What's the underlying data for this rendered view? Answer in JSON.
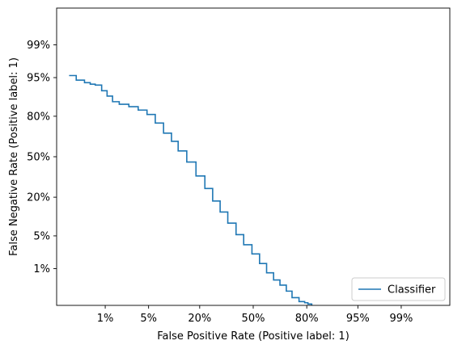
{
  "chart_data": {
    "type": "line",
    "subtype": "DET curve",
    "scale": "normal-deviate (probit)",
    "xlabel": "False Positive Rate (Positive label: 1)",
    "ylabel": "False Negative Rate (Positive label: 1)",
    "xticks": [
      {
        "value": 0.01,
        "label": "1%"
      },
      {
        "value": 0.05,
        "label": "5%"
      },
      {
        "value": 0.2,
        "label": "20%"
      },
      {
        "value": 0.5,
        "label": "50%"
      },
      {
        "value": 0.8,
        "label": "80%"
      },
      {
        "value": 0.95,
        "label": "95%"
      },
      {
        "value": 0.99,
        "label": "99%"
      }
    ],
    "yticks": [
      {
        "value": 0.01,
        "label": "1%"
      },
      {
        "value": 0.05,
        "label": "5%"
      },
      {
        "value": 0.2,
        "label": "20%"
      },
      {
        "value": 0.5,
        "label": "50%"
      },
      {
        "value": 0.8,
        "label": "80%"
      },
      {
        "value": 0.95,
        "label": "95%"
      },
      {
        "value": 0.99,
        "label": "99%"
      }
    ],
    "xlim": [
      0.001,
      0.999
    ],
    "ylim": [
      0.001,
      0.999
    ],
    "grid": false,
    "legend_position": "lower right",
    "series": [
      {
        "name": "Classifier",
        "color": "#1f77b4",
        "x": [
          0.0019,
          0.0027,
          0.004,
          0.0052,
          0.0065,
          0.0086,
          0.0108,
          0.0135,
          0.0176,
          0.0253,
          0.0353,
          0.0475,
          0.0618,
          0.0793,
          0.0994,
          0.119,
          0.1481,
          0.1841,
          0.2236,
          0.2619,
          0.3015,
          0.3446,
          0.3936,
          0.4404,
          0.492,
          0.5397,
          0.5832,
          0.6255,
          0.6628,
          0.6985,
          0.7291,
          0.7642,
          0.7907,
          0.8051,
          0.8212,
          0.8389,
          0.8508,
          0.8508
        ],
        "y": [
          0.9543,
          0.9443,
          0.9382,
          0.9343,
          0.9318,
          0.915,
          0.8964,
          0.8737,
          0.8621,
          0.8508,
          0.834,
          0.8102,
          0.758,
          0.6879,
          0.6255,
          0.5478,
          0.4562,
          0.3446,
          0.2546,
          0.1788,
          0.1251,
          0.0838,
          0.0526,
          0.0336,
          0.0217,
          0.0132,
          0.0079,
          0.0052,
          0.0038,
          0.0026,
          0.0017,
          0.0013,
          0.0012,
          0.0011,
          0.0009,
          0.0007,
          0.0006,
          0.0004
        ]
      }
    ]
  }
}
